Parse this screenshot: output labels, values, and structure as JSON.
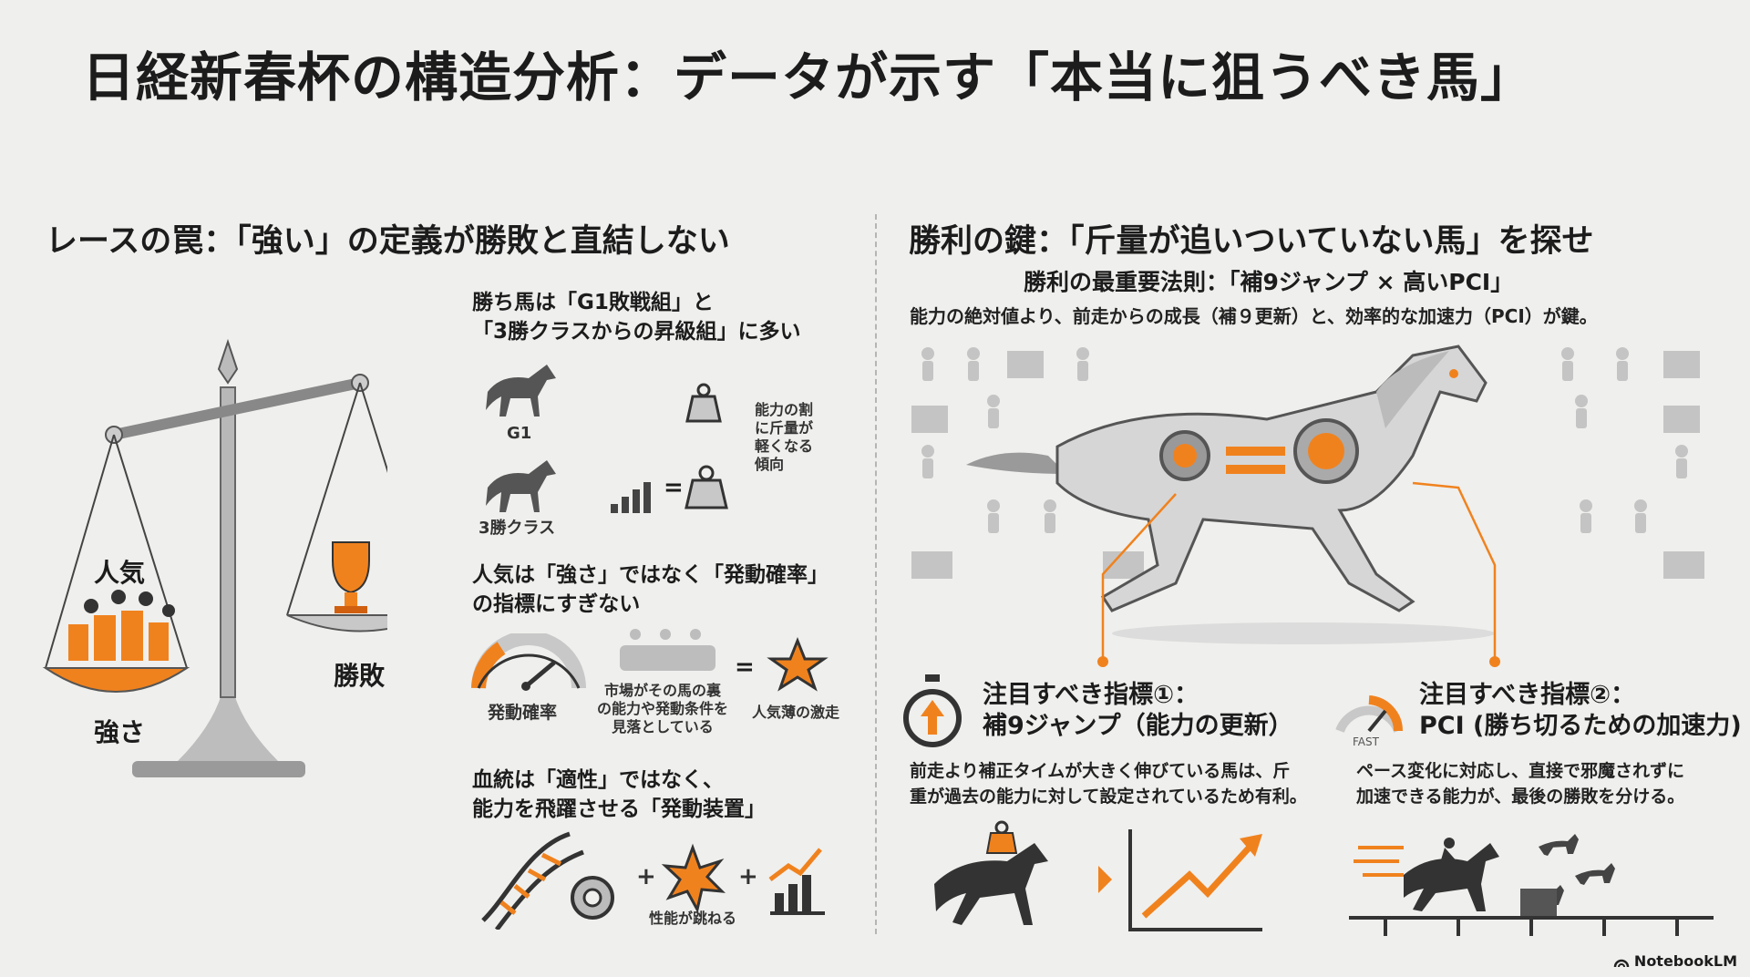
{
  "title": "日経新春杯の構造分析：データが示す「本当に狙うべき馬」",
  "left": {
    "heading": "レースの罠：「強い」の定義が勝敗と直結しない",
    "scale": {
      "left_label": "人気",
      "left_bottom_label": "強さ",
      "right_label": "勝敗"
    },
    "point1": {
      "lines": [
        "勝ち馬は「G1敗戦組」と",
        "「3勝クラスからの昇級組」に多い"
      ],
      "g1_label": "G1",
      "class3_label": "3勝クラス",
      "note_lines": [
        "能力の割",
        "に斤量が",
        "軽くなる",
        "傾向"
      ]
    },
    "point2": {
      "lines": [
        "人気は「強さ」ではなく「発動確率」",
        "の指標にすぎない"
      ],
      "gauge_label": "発動確率",
      "crowd_lines": [
        "市場がその馬の裏",
        "の能力や発動条件を",
        "見落としている"
      ],
      "star_label": "人気薄の激走"
    },
    "point3": {
      "lines": [
        "血統は「適性」ではなく、",
        "能力を飛躍させる「発動装置」"
      ],
      "burst_label": "性能が跳ねる"
    }
  },
  "right": {
    "heading": "勝利の鍵：「斤量が追いついていない馬」を探せ",
    "subheading": "勝利の最重要法則：「補9ジャンプ × 高いPCI」",
    "subtext": "能力の絶対値より、前走からの成長（補９更新）と、効率的な加速力（PCI）が鍵。",
    "indicator1": {
      "title_lines": [
        "注目すべき指標①：",
        "補9ジャンプ（能力の更新）"
      ],
      "desc_lines": [
        "前走より補正タイムが大きく伸びている馬は、斤",
        "重が過去の能力に対して設定されているため有利。"
      ]
    },
    "indicator2": {
      "title_lines": [
        "注目すべき指標②：",
        "PCI (勝ち切るための加速力)"
      ],
      "gauge_text": "FAST",
      "desc_lines": [
        "ペース変化に対応し、直接で邪魔されずに",
        "加速できる能力が、最後の勝敗を分ける。"
      ]
    }
  },
  "brand": "NotebookLM",
  "colors": {
    "accent": "#f0821e",
    "dark": "#333333",
    "gray": "#9a9a9a",
    "background": "#efefed"
  }
}
